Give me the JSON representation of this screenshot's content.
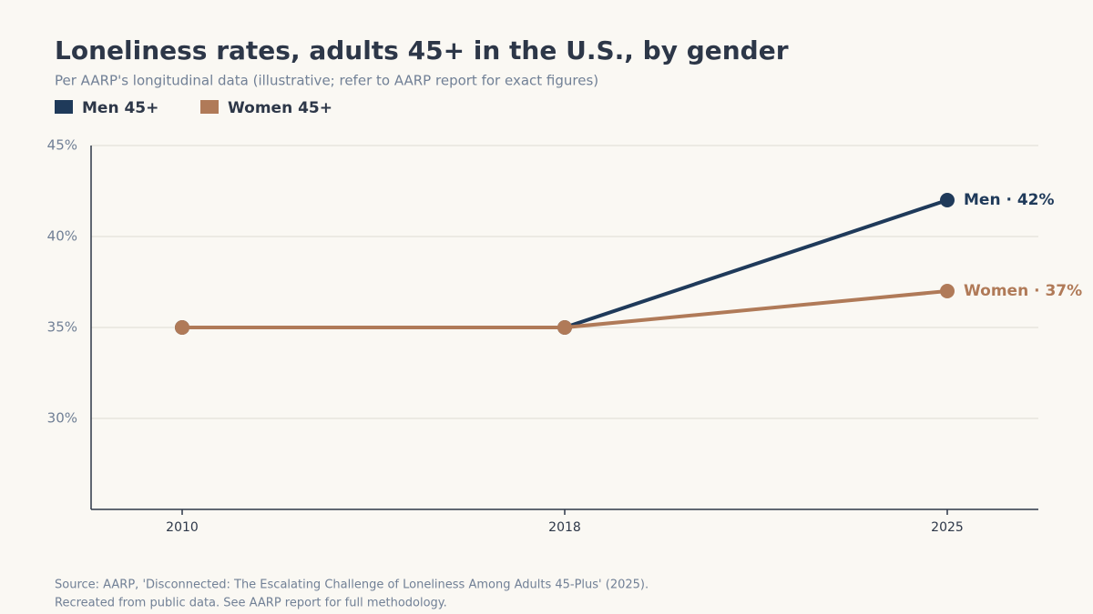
{
  "chart_data": {
    "type": "line",
    "title": "Loneliness rates, adults 45+ in the U.S., by gender",
    "subtitle": "Per AARP's longitudinal data (illustrative; refer to AARP report for exact figures)",
    "categories": [
      "2010",
      "2018",
      "2025"
    ],
    "series": [
      {
        "name": "Men 45+",
        "color": "#1f3a5a",
        "values": [
          35,
          35,
          42
        ],
        "value_labels": [
          null,
          null,
          "Men · 42%"
        ]
      },
      {
        "name": "Women 45+",
        "color": "#b07a58",
        "values": [
          35,
          35,
          37
        ],
        "value_labels": [
          null,
          null,
          "Women · 37%"
        ]
      }
    ],
    "ylim": [
      25,
      45
    ],
    "yticks": [
      {
        "value": 30,
        "label": "30%"
      },
      {
        "value": 35,
        "label": "35%"
      },
      {
        "value": 40,
        "label": "40%"
      },
      {
        "value": 45,
        "label": "45%"
      }
    ],
    "grid": true,
    "legend": "top-left",
    "source": [
      "Source: AARP, 'Disconnected: The Escalating Challenge of Loneliness Among Adults 45-Plus' (2025).",
      "Recreated from public data. See AARP report for full methodology."
    ]
  }
}
